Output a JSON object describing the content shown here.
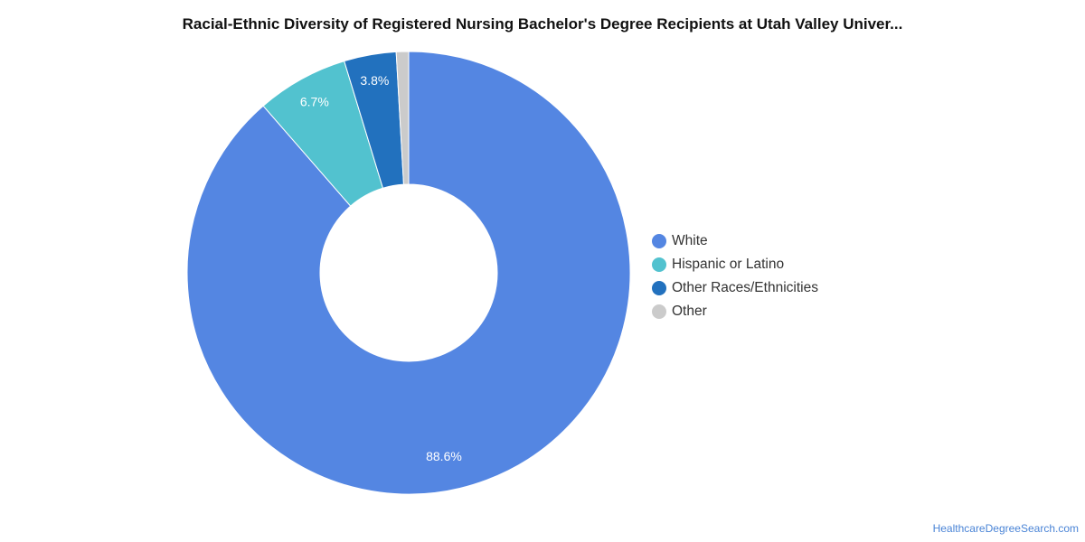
{
  "chart_data": {
    "type": "pie",
    "variant": "donut",
    "title": "Racial-Ethnic Diversity of Registered Nursing Bachelor's Degree Recipients at Utah Valley Univer...",
    "categories": [
      "White",
      "Hispanic or Latino",
      "Other Races/Ethnicities",
      "Other"
    ],
    "values": [
      88.6,
      6.7,
      3.8,
      0.9
    ],
    "data_labels": [
      "88.6%",
      "6.7%",
      "3.8%",
      ""
    ],
    "colors": [
      "#5486e2",
      "#52c2cf",
      "#2271be",
      "#cbcbcb"
    ],
    "legend_position": "right"
  },
  "credit": "HealthcareDegreeSearch.com"
}
